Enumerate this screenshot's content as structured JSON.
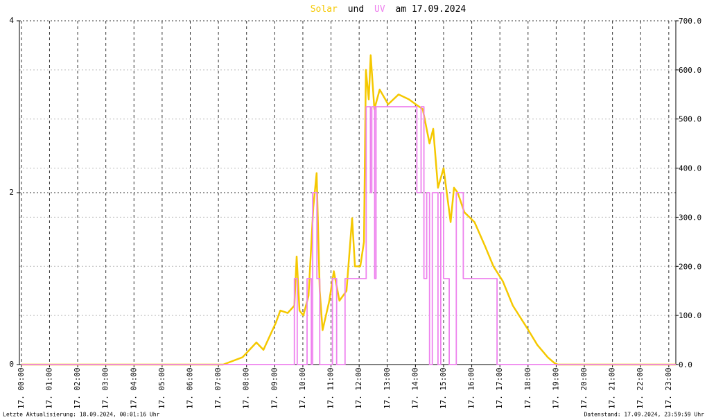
{
  "chart_data": {
    "type": "line",
    "title_connector": "und",
    "title_date": "am 17.09.2024",
    "footer_left": "Letzte Aktualisierung: 18.09.2024, 00:01:16 Uhr",
    "footer_right": "Datenstand: 17.09.2024, 23:59:59 Uhr",
    "grid": true,
    "xlim": [
      -0.07,
      23.25
    ],
    "xticks": [
      {
        "value": 0,
        "label": "17. 00:00"
      },
      {
        "value": 1,
        "label": "17. 01:00"
      },
      {
        "value": 2,
        "label": "17. 02:00"
      },
      {
        "value": 3,
        "label": "17. 03:00"
      },
      {
        "value": 4,
        "label": "17. 04:00"
      },
      {
        "value": 5,
        "label": "17. 05:00"
      },
      {
        "value": 6,
        "label": "17. 06:00"
      },
      {
        "value": 7,
        "label": "17. 07:00"
      },
      {
        "value": 8,
        "label": "17. 08:00"
      },
      {
        "value": 9,
        "label": "17. 09:00"
      },
      {
        "value": 10,
        "label": "17. 10:00"
      },
      {
        "value": 11,
        "label": "17. 11:00"
      },
      {
        "value": 12,
        "label": "17. 12:00"
      },
      {
        "value": 13,
        "label": "17. 13:00"
      },
      {
        "value": 14,
        "label": "17. 14:00"
      },
      {
        "value": 15,
        "label": "17. 15:00"
      },
      {
        "value": 16,
        "label": "17. 16:00"
      },
      {
        "value": 17,
        "label": "17. 17:00"
      },
      {
        "value": 18,
        "label": "17. 18:00"
      },
      {
        "value": 19,
        "label": "17. 19:00"
      },
      {
        "value": 20,
        "label": "17. 20:00"
      },
      {
        "value": 21,
        "label": "17. 21:00"
      },
      {
        "value": 22,
        "label": "17. 22:00"
      },
      {
        "value": 23,
        "label": "17. 23:00"
      }
    ],
    "ylim": [
      0,
      4
    ],
    "yticks": [
      0,
      2,
      4
    ],
    "y2lim": [
      0,
      700
    ],
    "y2ticks": [
      {
        "value": 0,
        "label": "0.0"
      },
      {
        "value": 100,
        "label": "100.0"
      },
      {
        "value": 200,
        "label": "200.0"
      },
      {
        "value": 300,
        "label": "300.0"
      },
      {
        "value": 400,
        "label": "400.0"
      },
      {
        "value": 500,
        "label": "500.0"
      },
      {
        "value": 600,
        "label": "600.0"
      },
      {
        "value": 700,
        "label": "700.0"
      }
    ],
    "series": [
      {
        "name": "Solar",
        "color": "#f5c800",
        "axis": "y2",
        "x": [
          0,
          7.17,
          7.86,
          8.35,
          8.6,
          8.84,
          9.04,
          9.2,
          9.46,
          9.7,
          9.78,
          9.88,
          10.02,
          10.2,
          10.37,
          10.49,
          10.6,
          10.7,
          10.94,
          11.1,
          11.3,
          11.55,
          11.75,
          11.85,
          12.04,
          12.17,
          12.24,
          12.34,
          12.41,
          12.54,
          12.73,
          13.03,
          13.4,
          13.77,
          14.01,
          14.26,
          14.5,
          14.63,
          14.8,
          15.0,
          15.25,
          15.37,
          15.5,
          15.74,
          16.1,
          16.48,
          16.77,
          17.1,
          17.46,
          17.96,
          18.33,
          18.7,
          18.94,
          19.06,
          23.25
        ],
        "values": [
          0,
          0,
          15,
          45,
          30,
          60,
          85,
          110,
          105,
          120,
          220,
          110,
          100,
          140,
          320,
          390,
          150,
          70,
          130,
          190,
          130,
          150,
          298,
          200,
          200,
          250,
          600,
          540,
          630,
          520,
          560,
          530,
          550,
          540,
          530,
          520,
          450,
          480,
          360,
          400,
          290,
          360,
          350,
          310,
          290,
          240,
          200,
          170,
          120,
          75,
          40,
          15,
          3,
          0,
          0
        ]
      },
      {
        "name": "UV",
        "color": "#ee82ee",
        "axis": "y",
        "x": [
          0,
          9.7,
          9.7,
          9.8,
          9.8,
          10.15,
          10.15,
          10.3,
          10.3,
          10.35,
          10.35,
          10.5,
          10.5,
          10.6,
          10.6,
          11.05,
          11.05,
          11.2,
          11.2,
          11.5,
          11.5,
          12.25,
          12.25,
          12.4,
          12.4,
          12.45,
          12.45,
          12.55,
          12.55,
          12.6,
          12.6,
          14.05,
          14.05,
          14.2,
          14.2,
          14.3,
          14.3,
          14.4,
          14.4,
          14.5,
          14.5,
          14.6,
          14.6,
          14.8,
          14.8,
          14.9,
          14.9,
          15.0,
          15.0,
          15.2,
          15.2,
          15.45,
          15.45,
          15.7,
          15.7,
          16.9,
          16.9,
          23.25
        ],
        "values": [
          0,
          0,
          1,
          1,
          0,
          0,
          1,
          1,
          0,
          0,
          2,
          2,
          1,
          1,
          0,
          0,
          1,
          1,
          0,
          0,
          1,
          1,
          3,
          3,
          2,
          2,
          3,
          3,
          1,
          1,
          3,
          3,
          2,
          2,
          3,
          3,
          1,
          1,
          2,
          2,
          0,
          0,
          2,
          2,
          0,
          0,
          2,
          2,
          1,
          1,
          0,
          0,
          2,
          2,
          1,
          1,
          0,
          0
        ]
      }
    ]
  }
}
